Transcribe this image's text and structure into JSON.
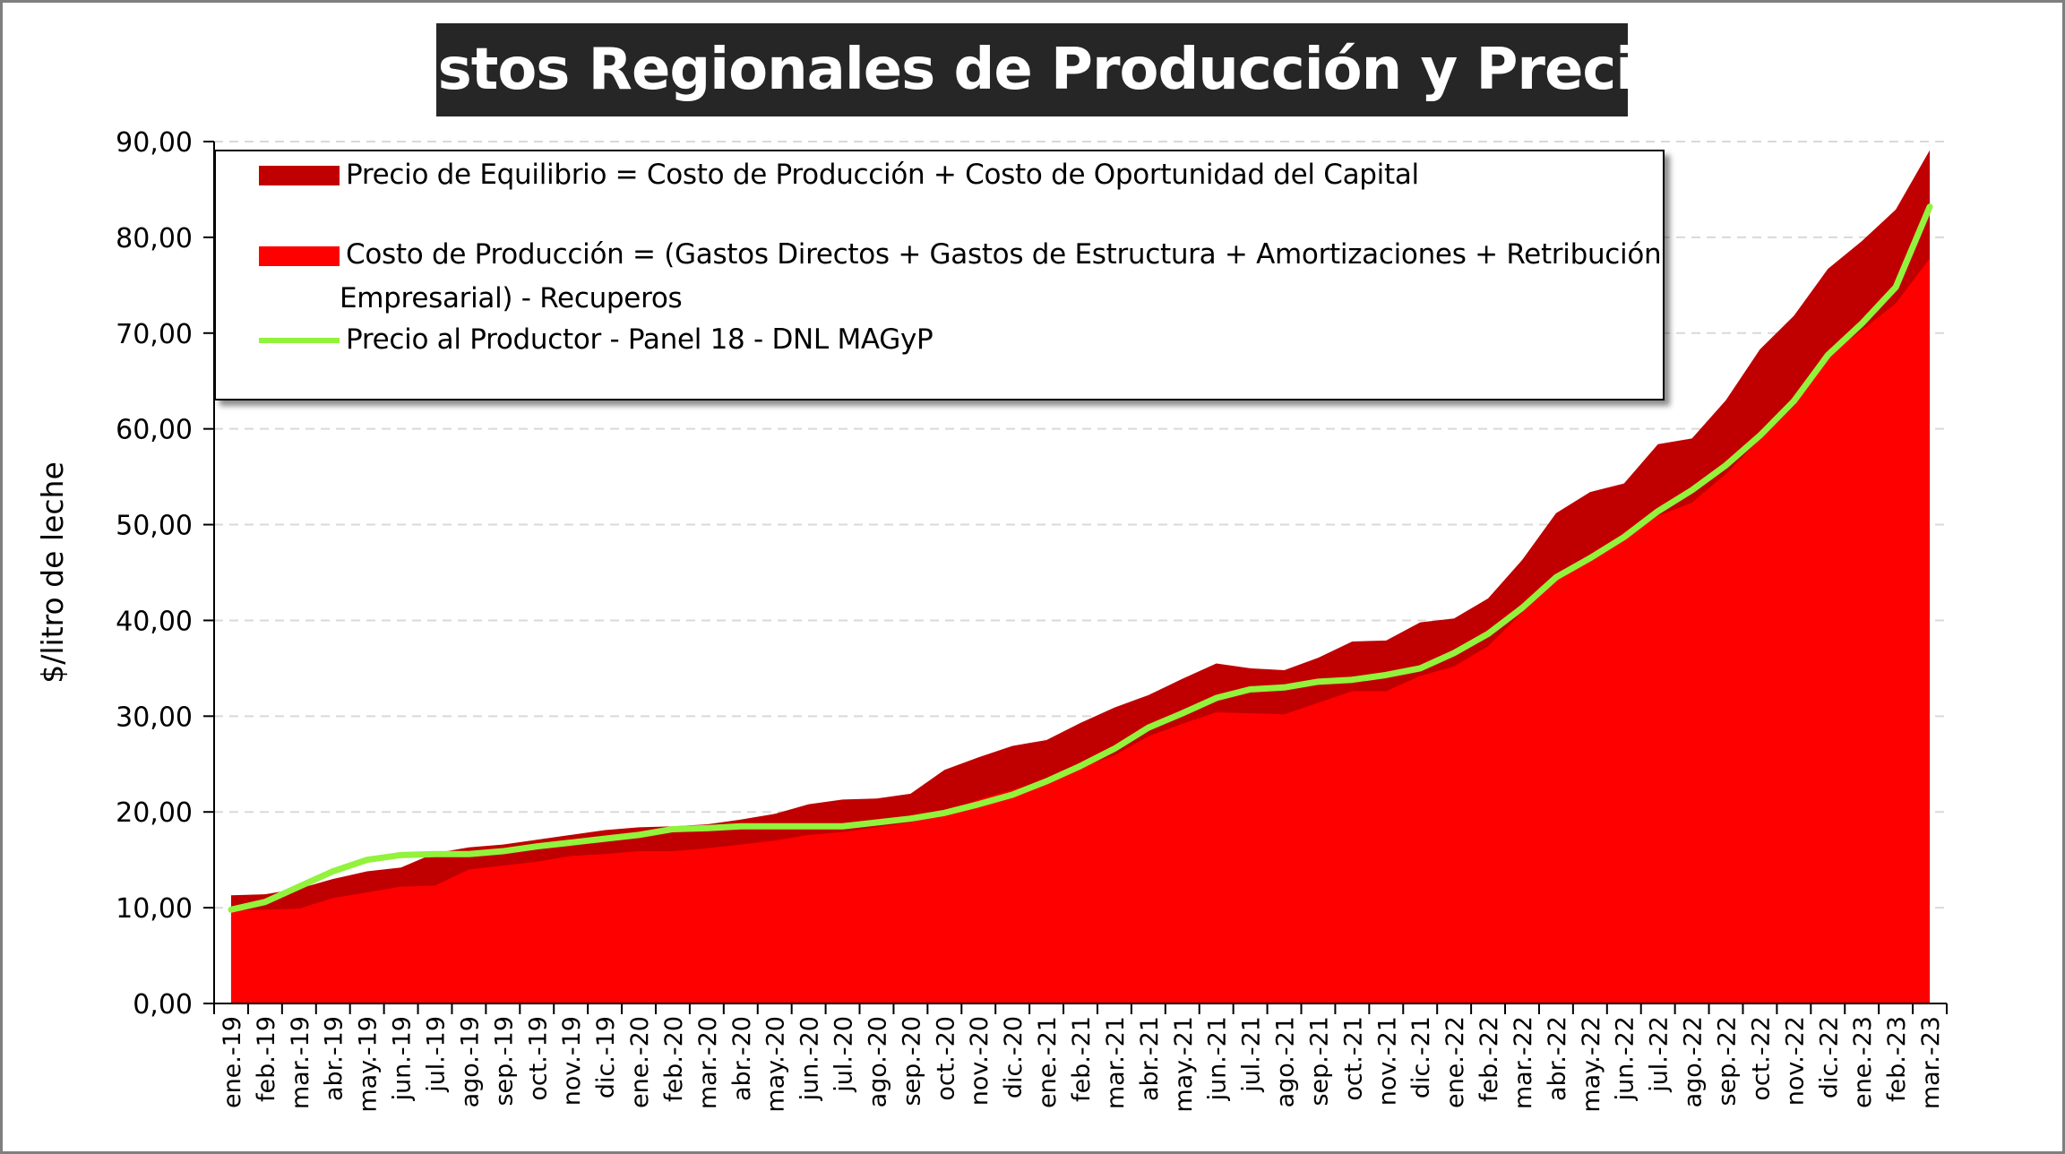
{
  "title": "Costos Regionales de Producción y Precios",
  "colors": {
    "equilibrium": "#c00000",
    "production_cost": "#ff0000",
    "producer_price": "#92f23c",
    "title_bg": "#262626",
    "grid": "#d9d9d9"
  },
  "legend": {
    "equilibrium": "Precio de Equilibrio = Costo de Producción + Costo de Oportunidad del Capital",
    "production_cost_line1": "Costo de Producción = (Gastos Directos + Gastos de Estructura + Amortizaciones + Retribución",
    "production_cost_line2": "Empresarial) - Recuperos",
    "producer_price": "Precio al Productor - Panel 18 - DNL MAGyP"
  },
  "chart_data": {
    "type": "area",
    "title": "Costos Regionales de Producción y Precios",
    "xlabel": "",
    "ylabel": "$/litro de leche",
    "ylim": [
      0,
      90
    ],
    "y_ticks": [
      "0,00",
      "10,00",
      "20,00",
      "30,00",
      "40,00",
      "50,00",
      "60,00",
      "70,00",
      "80,00",
      "90,00"
    ],
    "grid": "horizontal dashed",
    "legend_position": "top-left, inside plot",
    "categories": [
      "ene.-19",
      "feb.-19",
      "mar.-19",
      "abr.-19",
      "may.-19",
      "jun.-19",
      "jul.-19",
      "ago.-19",
      "sep.-19",
      "oct.-19",
      "nov.-19",
      "dic.-19",
      "ene.-20",
      "feb.-20",
      "mar.-20",
      "abr.-20",
      "may.-20",
      "jun.-20",
      "jul.-20",
      "ago.-20",
      "sep.-20",
      "oct.-20",
      "nov.-20",
      "dic.-20",
      "ene.-21",
      "feb.-21",
      "mar.-21",
      "abr.-21",
      "may.-21",
      "jun.-21",
      "jul.-21",
      "ago.-21",
      "sep.-21",
      "oct.-21",
      "nov.-21",
      "dic.-21",
      "ene.-22",
      "feb.-22",
      "mar.-22",
      "abr.-22",
      "may.-22",
      "jun.-22",
      "jul.-22",
      "ago.-22",
      "sep.-22",
      "oct.-22",
      "nov.-22",
      "dic.-22",
      "ene.-23",
      "feb.-23",
      "mar.-23"
    ],
    "series": [
      {
        "name": "Precio de Equilibrio = Costo de Producción + Costo de Oportunidad del Capital",
        "kind": "area",
        "values": [
          11.3,
          11.4,
          12.0,
          13.0,
          13.8,
          14.2,
          15.7,
          16.3,
          16.6,
          17.1,
          17.6,
          18.1,
          18.4,
          18.5,
          18.7,
          19.2,
          19.8,
          20.8,
          21.3,
          21.4,
          21.9,
          24.4,
          25.7,
          26.9,
          27.5,
          29.3,
          30.9,
          32.2,
          33.9,
          35.5,
          35.0,
          34.8,
          36.1,
          37.8,
          37.9,
          39.8,
          40.2,
          42.3,
          46.3,
          51.2,
          53.4,
          54.3,
          58.4,
          59.0,
          63.0,
          68.3,
          71.8,
          76.7,
          79.6,
          82.9,
          89.1
        ]
      },
      {
        "name": "Costo de Producción = (Gastos Directos + Gastos de Estructura + Amortizaciones + Retribución Empresarial) - Recuperos",
        "kind": "area",
        "values": [
          9.7,
          9.8,
          9.9,
          11.0,
          11.6,
          12.2,
          12.3,
          14.0,
          14.4,
          14.8,
          15.4,
          15.6,
          15.9,
          15.9,
          16.2,
          16.6,
          17.0,
          17.6,
          17.9,
          18.4,
          18.9,
          19.9,
          21.3,
          22.3,
          23.3,
          24.6,
          25.9,
          27.9,
          29.2,
          30.4,
          30.3,
          30.2,
          31.4,
          32.6,
          32.6,
          34.2,
          35.2,
          37.3,
          40.8,
          44.1,
          46.3,
          48.4,
          50.9,
          52.3,
          55.3,
          58.9,
          62.3,
          67.6,
          70.3,
          73.1,
          77.8
        ]
      },
      {
        "name": "Precio al Productor - Panel 18 - DNL MAGyP",
        "kind": "line",
        "values": [
          9.8,
          10.6,
          12.2,
          13.8,
          15.0,
          15.5,
          15.6,
          15.6,
          15.9,
          16.4,
          16.8,
          17.2,
          17.6,
          18.2,
          18.3,
          18.5,
          18.5,
          18.5,
          18.5,
          18.9,
          19.3,
          19.9,
          20.8,
          21.8,
          23.2,
          24.8,
          26.6,
          28.8,
          30.3,
          31.9,
          32.8,
          33.0,
          33.6,
          33.8,
          34.3,
          35.0,
          36.6,
          38.6,
          41.3,
          44.5,
          46.5,
          48.7,
          51.4,
          53.6,
          56.2,
          59.3,
          62.9,
          67.7,
          71.0,
          74.8,
          83.2
        ]
      }
    ]
  }
}
